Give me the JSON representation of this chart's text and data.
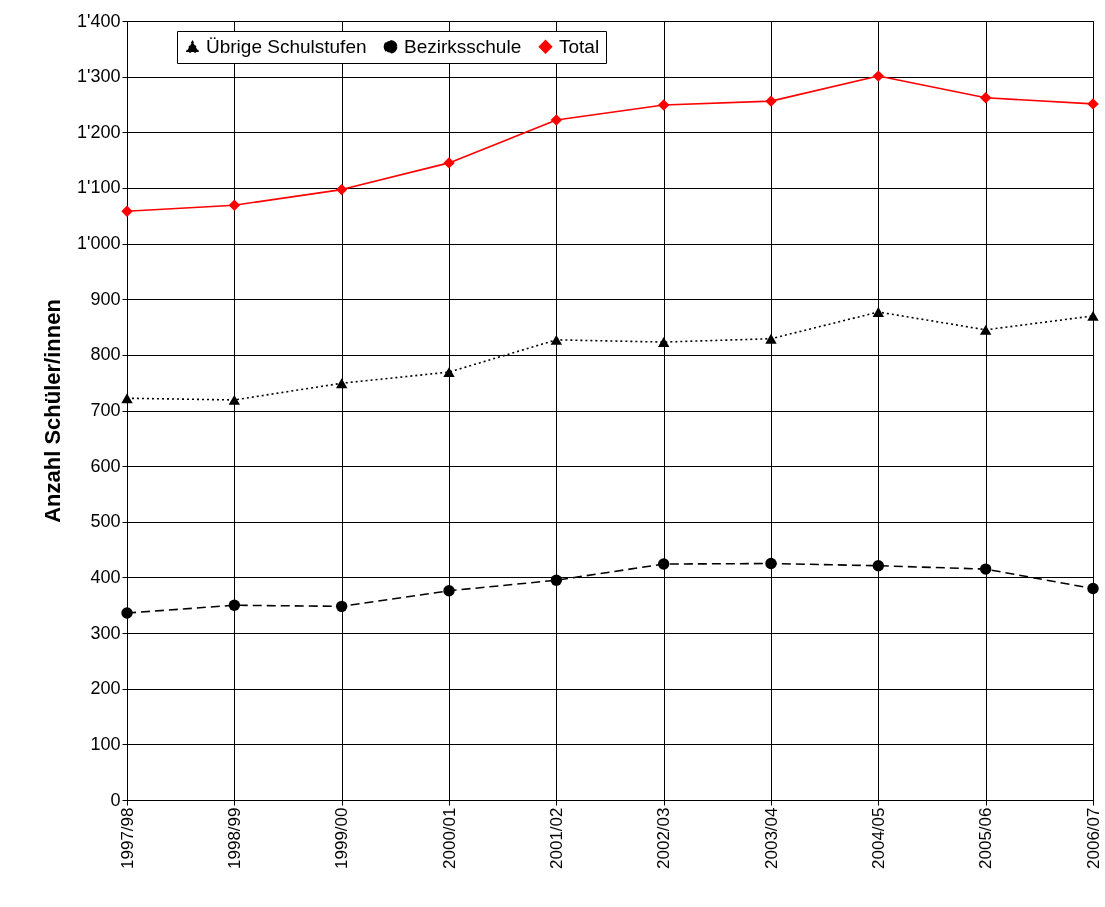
{
  "chart_data": {
    "type": "line",
    "ylabel": "Anzahl Schüler/innen",
    "categories": [
      "1997/98",
      "1998/99",
      "1999/00",
      "2000/01",
      "2001/02",
      "2002/03",
      "2003/04",
      "2004/05",
      "2005/06",
      "2006/07"
    ],
    "series": [
      {
        "name": "Übrige Schulstufen",
        "color": "#000000",
        "marker": "triangle",
        "line_style": "dotted",
        "values": [
          722,
          719,
          749,
          769,
          827,
          823,
          829,
          877,
          845,
          870
        ]
      },
      {
        "name": "Bezirksschule",
        "color": "#000000",
        "marker": "circle",
        "line_style": "dashed",
        "values": [
          336,
          350,
          348,
          376,
          395,
          424,
          425,
          421,
          415,
          380
        ]
      },
      {
        "name": "Total",
        "color": "#ff0000",
        "marker": "diamond",
        "line_style": "solid",
        "values": [
          1058,
          1069,
          1097,
          1145,
          1222,
          1249,
          1256,
          1301,
          1262,
          1251
        ]
      }
    ],
    "ylim": [
      0,
      1400
    ],
    "yticks": [
      0,
      100,
      200,
      300,
      400,
      500,
      600,
      700,
      800,
      900,
      {
        "value": 1000,
        "label": "1'000"
      },
      {
        "value": 1100,
        "label": "1'100"
      },
      {
        "value": 1200,
        "label": "1'200"
      },
      {
        "value": 1300,
        "label": "1'300"
      },
      {
        "value": 1400,
        "label": "1'400"
      }
    ],
    "grid": true,
    "legend": "top left"
  }
}
